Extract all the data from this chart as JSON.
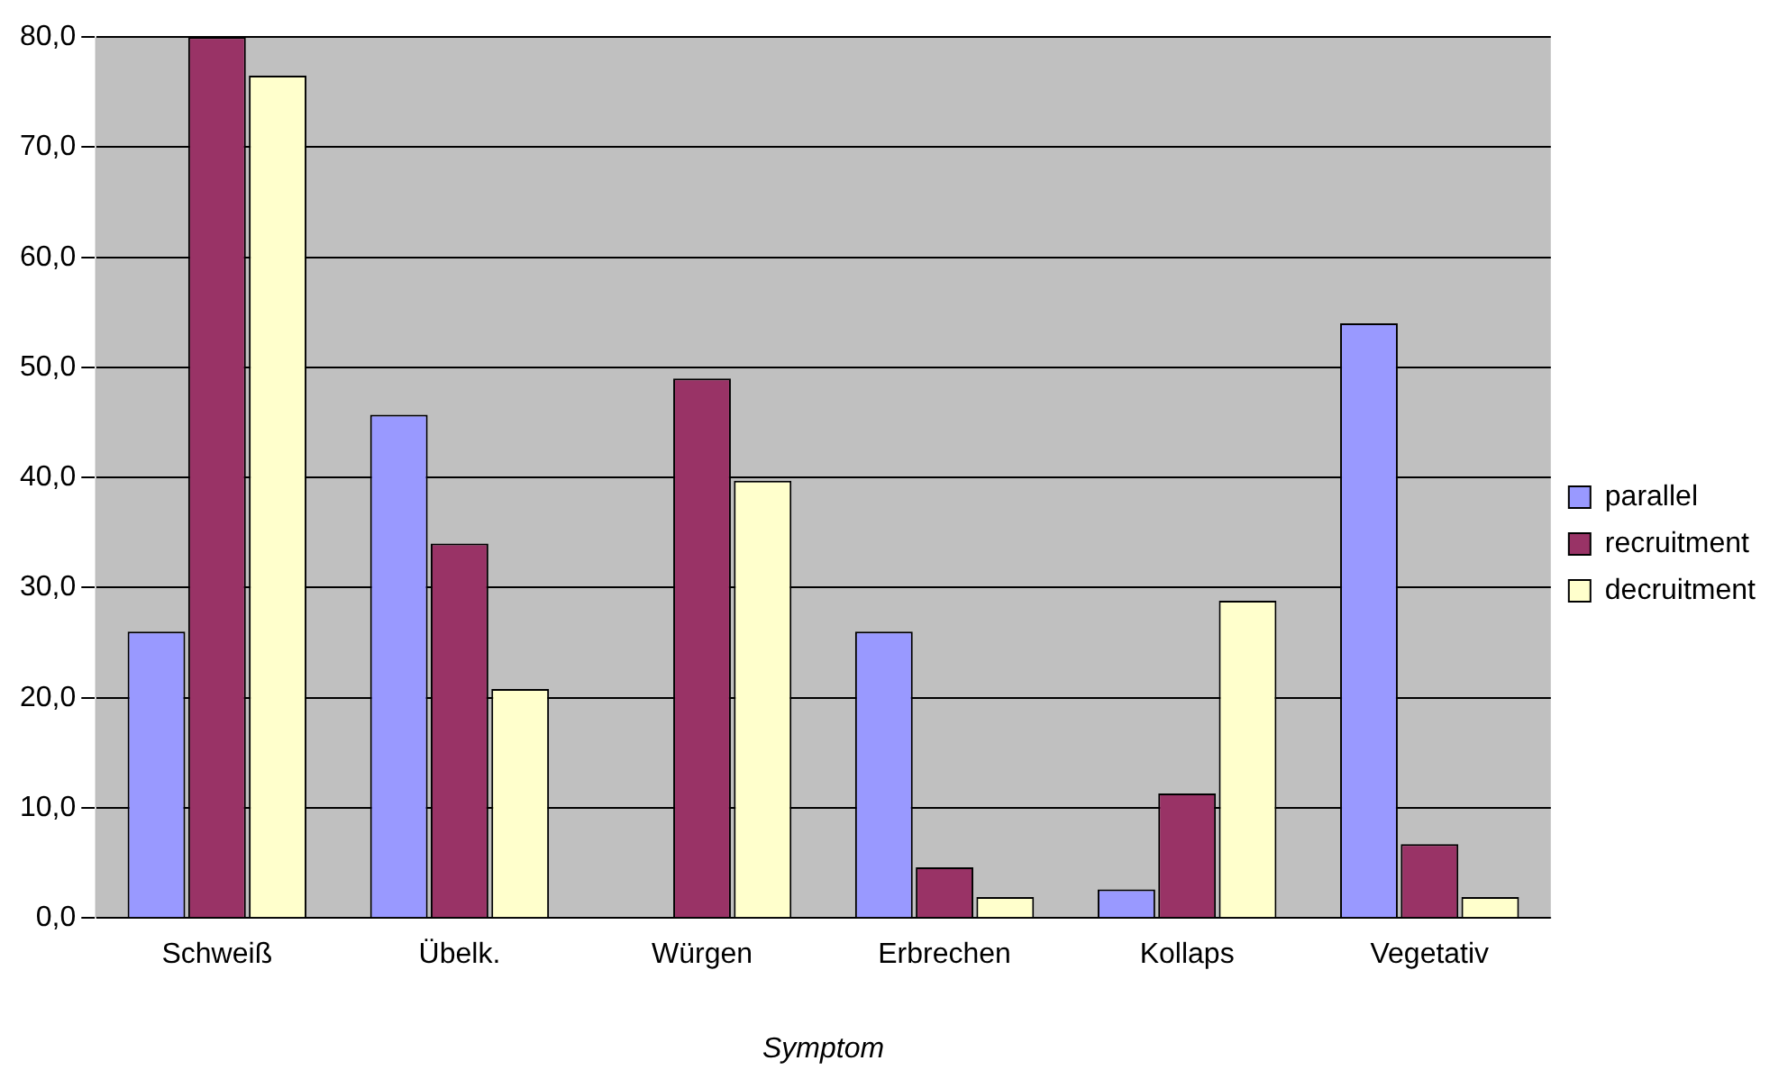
{
  "chart_data": {
    "type": "bar",
    "xlabel": "Symptom",
    "categories": [
      "Schweiß",
      "Übelk.",
      "Würgen",
      "Erbrechen",
      "Kollaps",
      "Vegetativ"
    ],
    "series": [
      {
        "name": "parallel",
        "color": "#9999ff",
        "values": [
          26,
          45.7,
          0,
          26,
          2.6,
          54
        ]
      },
      {
        "name": "recruitment",
        "color": "#993366",
        "values": [
          80,
          34,
          49,
          4.6,
          11.3,
          6.7
        ]
      },
      {
        "name": "decruitment",
        "color": "#ffffcc",
        "values": [
          76.5,
          20.8,
          39.7,
          1.9,
          28.8,
          1.9
        ]
      }
    ],
    "ylim": [
      0,
      80
    ],
    "yticks": [
      {
        "value": 0,
        "label": "0,0"
      },
      {
        "value": 10,
        "label": "10,0"
      },
      {
        "value": 20,
        "label": "20,0"
      },
      {
        "value": 30,
        "label": "30,0"
      },
      {
        "value": 40,
        "label": "40,0"
      },
      {
        "value": 50,
        "label": "50,0"
      },
      {
        "value": 60,
        "label": "60,0"
      },
      {
        "value": 70,
        "label": "70,0"
      },
      {
        "value": 80,
        "label": "80,0"
      }
    ],
    "grid": "y",
    "legend": "right"
  }
}
